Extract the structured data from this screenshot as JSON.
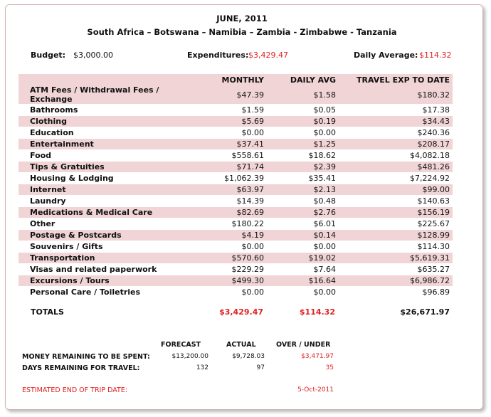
{
  "header": {
    "title": "JUNE, 2011",
    "route": "South Africa – Botswana – Namibia – Zambia - Zimbabwe - Tanzania"
  },
  "summary": {
    "budget_label": "Budget:",
    "budget_value": "$3,000.00",
    "expenditures_label": "Expenditures:",
    "expenditures_value": "$3,429.47",
    "daily_avg_label": "Daily Average:",
    "daily_avg_value": "$114.32"
  },
  "expense_table": {
    "columns": [
      "MONTHLY",
      "DAILY AVG",
      "TRAVEL EXP TO DATE"
    ],
    "rows": [
      {
        "category": "ATM Fees / Withdrawal Fees / Exchange",
        "monthly": "$47.39",
        "daily": "$1.58",
        "to_date": "$180.32"
      },
      {
        "category": "Bathrooms",
        "monthly": "$1.59",
        "daily": "$0.05",
        "to_date": "$17.38"
      },
      {
        "category": "Clothing",
        "monthly": "$5.69",
        "daily": "$0.19",
        "to_date": "$34.43"
      },
      {
        "category": "Education",
        "monthly": "$0.00",
        "daily": "$0.00",
        "to_date": "$240.36"
      },
      {
        "category": "Entertainment",
        "monthly": "$37.41",
        "daily": "$1.25",
        "to_date": "$208.17"
      },
      {
        "category": "Food",
        "monthly": "$558.61",
        "daily": "$18.62",
        "to_date": "$4,082.18"
      },
      {
        "category": "Tips & Gratuities",
        "monthly": "$71.74",
        "daily": "$2.39",
        "to_date": "$481.26"
      },
      {
        "category": "Housing & Lodging",
        "monthly": "$1,062.39",
        "daily": "$35.41",
        "to_date": "$7,224.92"
      },
      {
        "category": "Internet",
        "monthly": "$63.97",
        "daily": "$2.13",
        "to_date": "$99.00"
      },
      {
        "category": "Laundry",
        "monthly": "$14.39",
        "daily": "$0.48",
        "to_date": "$140.63"
      },
      {
        "category": "Medications & Medical Care",
        "monthly": "$82.69",
        "daily": "$2.76",
        "to_date": "$156.19"
      },
      {
        "category": "Other",
        "monthly": "$180.22",
        "daily": "$6.01",
        "to_date": "$225.67"
      },
      {
        "category": "Postage & Postcards",
        "monthly": "$4.19",
        "daily": "$0.14",
        "to_date": "$128.99"
      },
      {
        "category": "Souvenirs / Gifts",
        "monthly": "$0.00",
        "daily": "$0.00",
        "to_date": "$114.30"
      },
      {
        "category": "Transportation",
        "monthly": "$570.60",
        "daily": "$19.02",
        "to_date": "$5,619.31"
      },
      {
        "category": "Visas and related paperwork",
        "monthly": "$229.29",
        "daily": "$7.64",
        "to_date": "$635.27"
      },
      {
        "category": "Excursions / Tours",
        "monthly": "$499.30",
        "daily": "$16.64",
        "to_date": "$6,986.72"
      },
      {
        "category": "Personal Care / Toiletries",
        "monthly": "$0.00",
        "daily": "$0.00",
        "to_date": "$96.89"
      }
    ]
  },
  "totals": {
    "label": "TOTALS",
    "monthly": "$3,429.47",
    "daily": "$114.32",
    "to_date": "$26,671.97"
  },
  "forecast": {
    "col_forecast": "FORECAST",
    "col_actual": "ACTUAL",
    "col_over_under": "OVER / UNDER",
    "money_label": "MONEY REMAINING TO BE SPENT:",
    "money_forecast": "$13,200.00",
    "money_actual": "$9,728.03",
    "money_over_under": "$3,471.97",
    "days_label": "DAYS REMAINING FOR TRAVEL:",
    "days_forecast": "132",
    "days_actual": "97",
    "days_over_under": "35",
    "end_label": "ESTIMATED END OF TRIP DATE:",
    "end_value": "5-Oct-2011"
  },
  "colors": {
    "accent_red": "#e02020",
    "row_band": "#f0d4d6",
    "card_border": "#d7b3b3"
  }
}
